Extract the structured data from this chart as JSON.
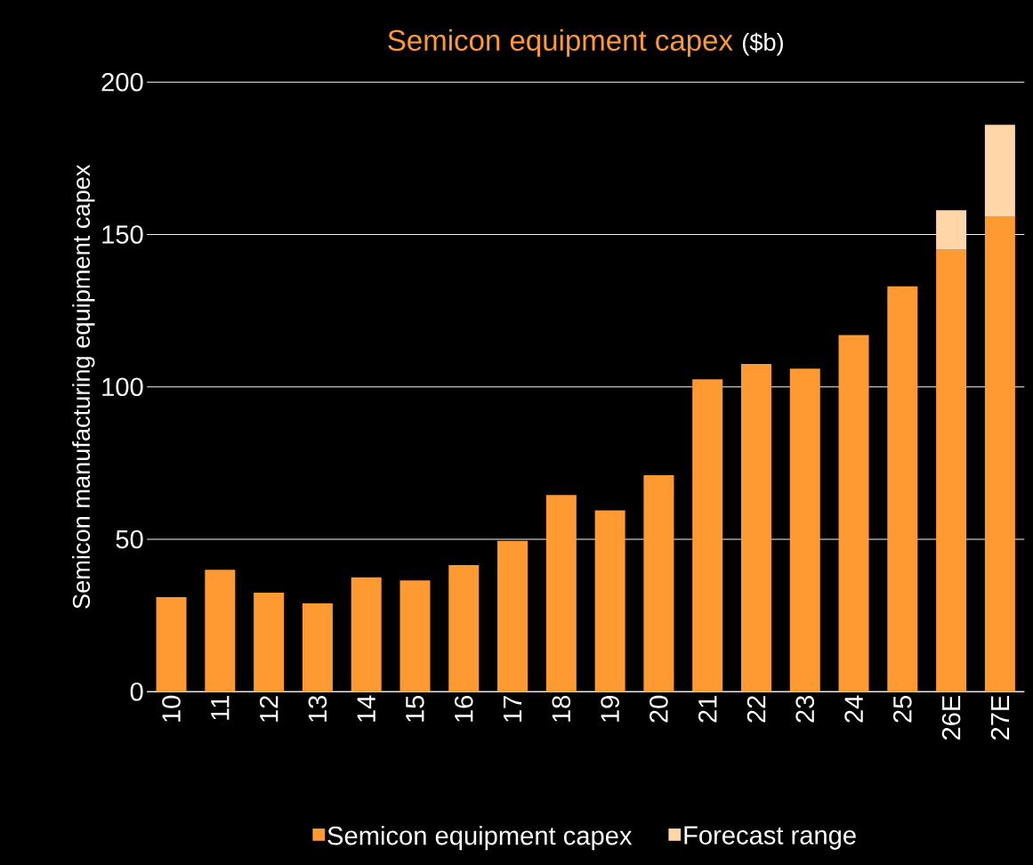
{
  "chart_data": {
    "type": "bar",
    "title": "Semicon equipment capex",
    "subtitle": "($b)",
    "ylabel": "Semicon manufacturing equipment capex",
    "categories": [
      "10",
      "11",
      "12",
      "13",
      "14",
      "15",
      "16",
      "17",
      "18",
      "19",
      "20",
      "21",
      "22",
      "23",
      "24",
      "25",
      "26E",
      "27E"
    ],
    "stacked": true,
    "series": [
      {
        "name": "Semicon equipment capex",
        "color": "#ff9a33",
        "values": [
          31,
          40,
          32.5,
          29,
          37.5,
          36.5,
          41.5,
          49.5,
          64.5,
          59.5,
          71,
          102.5,
          107.5,
          106,
          117,
          133,
          145,
          156
        ]
      },
      {
        "name": "Forecast range",
        "color": "#ffd6a8",
        "values": [
          null,
          null,
          null,
          null,
          null,
          null,
          null,
          null,
          null,
          null,
          null,
          null,
          null,
          null,
          null,
          null,
          13,
          30
        ]
      }
    ],
    "ylim": [
      0,
      200
    ],
    "yticks": [
      0,
      50,
      100,
      150,
      200
    ],
    "grid": "y",
    "legend": "bottom"
  }
}
